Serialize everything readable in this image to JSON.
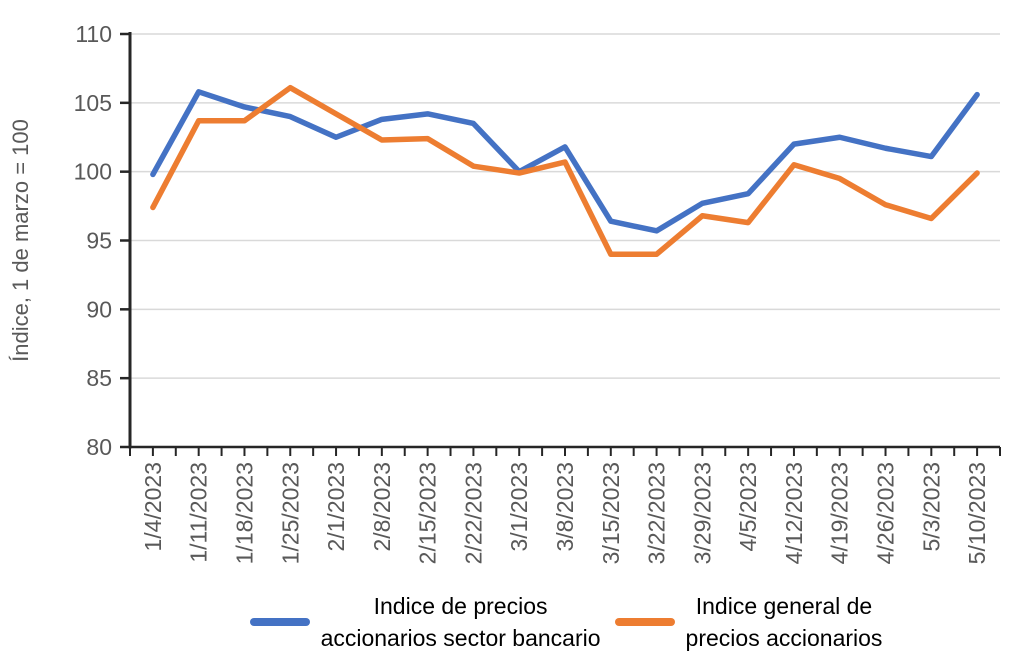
{
  "chart_data": {
    "type": "line",
    "title": "",
    "xlabel": "",
    "ylabel": "Índice, 1 de marzo = 100",
    "ylim": [
      80,
      110
    ],
    "ytick_step": 5,
    "grid": true,
    "legend_position": "bottom",
    "categories": [
      "1/4/2023",
      "1/11/2023",
      "1/18/2023",
      "1/25/2023",
      "2/1/2023",
      "2/8/2023",
      "2/15/2023",
      "2/22/2023",
      "3/1/2023",
      "3/8/2023",
      "3/15/2023",
      "3/22/2023",
      "3/29/2023",
      "4/5/2023",
      "4/12/2023",
      "4/19/2023",
      "4/26/2023",
      "5/3/2023",
      "5/10/2023"
    ],
    "series": [
      {
        "name": "Indice de precios accionarios sector bancario",
        "color": "#4472C4",
        "values": [
          99.8,
          105.8,
          104.7,
          104.0,
          102.5,
          103.8,
          104.2,
          103.5,
          100.0,
          101.8,
          96.4,
          95.7,
          97.7,
          98.4,
          102.0,
          102.5,
          101.7,
          101.1,
          105.6
        ]
      },
      {
        "name": "Indice general de precios accionarios",
        "color": "#ED7D31",
        "values": [
          97.4,
          103.7,
          103.7,
          106.1,
          104.2,
          102.3,
          102.4,
          100.4,
          99.9,
          100.7,
          94.0,
          94.0,
          96.8,
          96.3,
          100.5,
          99.5,
          97.6,
          96.6,
          99.9
        ]
      }
    ]
  },
  "legend": {
    "items": [
      {
        "line1": "Indice de precios",
        "line2": "accionarios sector bancario",
        "color": "#4472C4"
      },
      {
        "line1": "Indice general de",
        "line2": "precios accionarios",
        "color": "#ED7D31"
      }
    ]
  },
  "colors": {
    "axis": "#262626",
    "gridline": "#D9D9D9",
    "tick_label": "#595959",
    "background": "#FFFFFF"
  }
}
